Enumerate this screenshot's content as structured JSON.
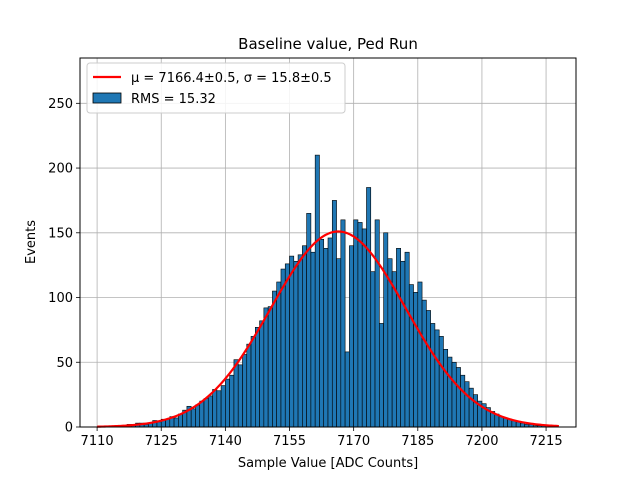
{
  "chart_data": {
    "type": "bar",
    "title": "Baseline value, Ped Run",
    "xlabel": "Sample Value [ADC Counts]",
    "ylabel": "Events",
    "xlim": [
      7106,
      7222
    ],
    "ylim": [
      0,
      285
    ],
    "xticks": [
      7110,
      7125,
      7140,
      7155,
      7170,
      7185,
      7200,
      7215
    ],
    "yticks": [
      0,
      50,
      100,
      150,
      200,
      250
    ],
    "grid": true,
    "legend_placement": "top-left",
    "bin_width": 1,
    "histogram": {
      "name": "RMS = 15.32",
      "color": "#1f77b4",
      "x": [
        7110,
        7111,
        7112,
        7113,
        7114,
        7115,
        7116,
        7117,
        7118,
        7119,
        7120,
        7121,
        7122,
        7123,
        7124,
        7125,
        7126,
        7127,
        7128,
        7129,
        7130,
        7131,
        7132,
        7133,
        7134,
        7135,
        7136,
        7137,
        7138,
        7139,
        7140,
        7141,
        7142,
        7143,
        7144,
        7145,
        7146,
        7147,
        7148,
        7149,
        7150,
        7151,
        7152,
        7153,
        7154,
        7155,
        7156,
        7157,
        7158,
        7159,
        7160,
        7161,
        7162,
        7163,
        7164,
        7165,
        7166,
        7167,
        7168,
        7169,
        7170,
        7171,
        7172,
        7173,
        7174,
        7175,
        7176,
        7177,
        7178,
        7179,
        7180,
        7181,
        7182,
        7183,
        7184,
        7185,
        7186,
        7187,
        7188,
        7189,
        7190,
        7191,
        7192,
        7193,
        7194,
        7195,
        7196,
        7197,
        7198,
        7199,
        7200,
        7201,
        7202,
        7203,
        7204,
        7205,
        7206,
        7207,
        7208,
        7209,
        7210,
        7211,
        7212,
        7213,
        7214,
        7215,
        7216,
        7217,
        7218
      ],
      "values": [
        0,
        0,
        0,
        0,
        1,
        1,
        1,
        2,
        2,
        3,
        3,
        2,
        3,
        5,
        4,
        6,
        6,
        8,
        7,
        10,
        13,
        16,
        14,
        17,
        20,
        22,
        24,
        29,
        28,
        32,
        37,
        40,
        52,
        48,
        56,
        64,
        70,
        77,
        82,
        92,
        93,
        105,
        112,
        122,
        126,
        132,
        128,
        133,
        140,
        165,
        135,
        210,
        145,
        138,
        146,
        175,
        130,
        160,
        58,
        140,
        160,
        158,
        153,
        185,
        120,
        160,
        80,
        150,
        130,
        120,
        138,
        128,
        135,
        110,
        104,
        112,
        98,
        90,
        80,
        75,
        70,
        60,
        54,
        50,
        46,
        40,
        35,
        30,
        25,
        20,
        18,
        15,
        12,
        10,
        8,
        7,
        6,
        5,
        4,
        3,
        2,
        2,
        1,
        1,
        1,
        0,
        0,
        0,
        0
      ]
    },
    "fit": {
      "name": "μ = 7166.4±0.5, σ = 15.8±0.5",
      "color": "#ff0000",
      "mu": 7166.4,
      "sigma": 15.8,
      "amplitude": 151,
      "x_range": [
        7110,
        7218
      ]
    }
  }
}
